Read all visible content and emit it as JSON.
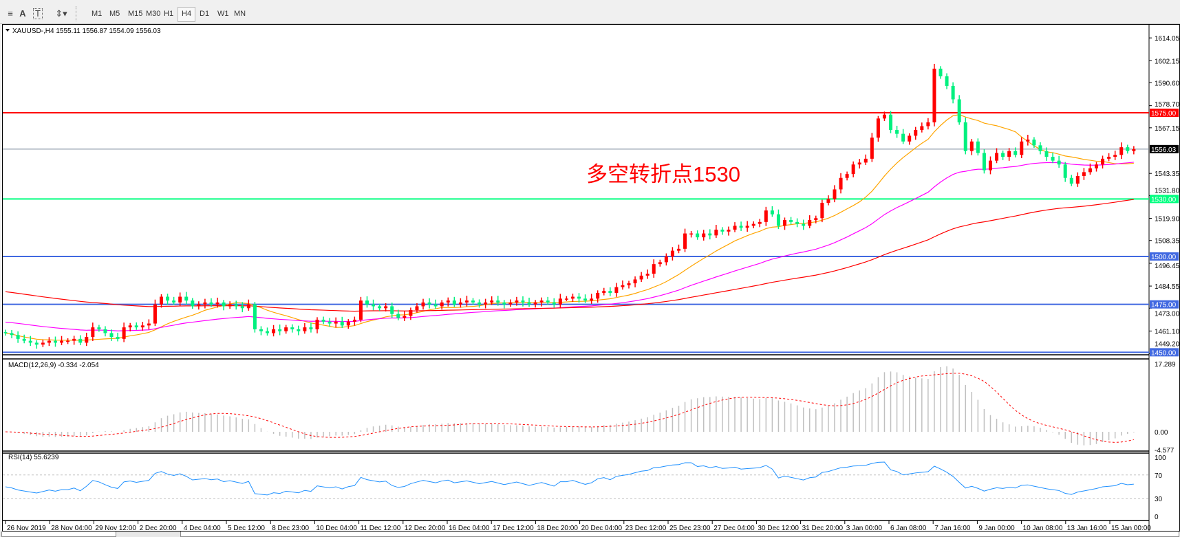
{
  "toolbar": {
    "tools": [
      {
        "name": "fibonacci-fan-icon",
        "glyph": "≡"
      },
      {
        "name": "text-icon",
        "glyph": "A"
      },
      {
        "name": "text-label-icon",
        "glyph": "T"
      },
      {
        "name": "arrows-icon",
        "glyph": "⇕▾"
      }
    ],
    "timeframes": [
      "M1",
      "M5",
      "M15",
      "M30",
      "H1",
      "H4",
      "D1",
      "W1",
      "MN"
    ],
    "active_timeframe": "H4"
  },
  "chart": {
    "header": "XAUUSD-,H4  1555.11 1556.87 1554.09 1556.03",
    "annotation": "多空转折点1530",
    "annotation_color": "#ff0000",
    "bull_color": "#ff0000",
    "bear_color": "#00f07f",
    "price_labels": [
      "1614.05",
      "1602.15",
      "1590.60",
      "1578.70",
      "1567.15",
      "1543.35",
      "1531.80",
      "1519.90",
      "1508.35",
      "1496.45",
      "1484.55",
      "1473.00",
      "1461.10",
      "1449.20"
    ],
    "current_price": "1556.03",
    "hlines": [
      {
        "value": 1575.0,
        "label": "1575.00",
        "color": "#ff0000"
      },
      {
        "value": 1556.03,
        "label": "1556.03",
        "color": "#778899"
      },
      {
        "value": 1530.0,
        "label": "1530.00",
        "color": "#00ff7f"
      },
      {
        "value": 1500.0,
        "label": "1500.00",
        "color": "#4169e1"
      },
      {
        "value": 1475.0,
        "label": "1475.00",
        "color": "#4169e1"
      },
      {
        "value": 1450.0,
        "label": "1450.00",
        "color": "#4169e1"
      }
    ],
    "ma_colors": [
      "#ffa500",
      "#ff00ff",
      "#ff0000"
    ],
    "closes": [
      1460,
      1459,
      1457,
      1456,
      1455,
      1454,
      1455,
      1456,
      1455,
      1456,
      1456,
      1457,
      1455,
      1458,
      1463,
      1462,
      1460,
      1458,
      1457,
      1463,
      1464,
      1463,
      1464,
      1465,
      1475,
      1479,
      1477,
      1476,
      1479,
      1477,
      1474,
      1475,
      1476,
      1475,
      1476,
      1474,
      1475,
      1474,
      1473,
      1475,
      1462,
      1461,
      1460,
      1462,
      1461,
      1463,
      1462,
      1461,
      1463,
      1462,
      1467,
      1466,
      1465,
      1466,
      1464,
      1466,
      1467,
      1477,
      1475,
      1474,
      1473,
      1474,
      1470,
      1468,
      1469,
      1472,
      1474,
      1476,
      1475,
      1474,
      1476,
      1477,
      1475,
      1476,
      1477,
      1476,
      1475,
      1476,
      1477,
      1476,
      1475,
      1476,
      1477,
      1476,
      1475,
      1476,
      1477,
      1476,
      1475,
      1478,
      1478,
      1479,
      1478,
      1477,
      1478,
      1481,
      1482,
      1481,
      1484,
      1485,
      1486,
      1488,
      1490,
      1491,
      1496,
      1497,
      1500,
      1503,
      1504,
      1512,
      1512,
      1510,
      1512,
      1511,
      1514,
      1513,
      1514,
      1516,
      1515,
      1516,
      1517,
      1518,
      1524,
      1522,
      1516,
      1519,
      1518,
      1517,
      1516,
      1519,
      1520,
      1528,
      1530,
      1535,
      1541,
      1543,
      1548,
      1549,
      1551,
      1562,
      1572,
      1574,
      1566,
      1564,
      1560,
      1563,
      1566,
      1568,
      1570,
      1598,
      1594,
      1589,
      1582,
      1570,
      1555,
      1560,
      1554,
      1545,
      1550,
      1554,
      1552,
      1555,
      1553,
      1560,
      1561,
      1558,
      1555,
      1552,
      1550,
      1548,
      1541,
      1538,
      1542,
      1544,
      1546,
      1548,
      1551,
      1552,
      1553,
      1557,
      1555,
      1556
    ]
  },
  "macd": {
    "label": "MACD(12,26,9) -0.334 -2.054",
    "axis_labels": [
      "17.289",
      "0.00",
      "-4.577"
    ],
    "hist_color": "#c0c0c0",
    "signal_color": "#ff0000"
  },
  "rsi": {
    "label": "RSI(14) 55.6239",
    "axis_labels": [
      "100",
      "70",
      "30",
      "0"
    ],
    "color": "#1e90ff"
  },
  "time_axis": [
    "26 Nov 2019",
    "28 Nov 04:00",
    "29 Nov 12:00",
    "2 Dec 20:00",
    "4 Dec 04:00",
    "5 Dec 12:00",
    "8 Dec 23:00",
    "10 Dec 04:00",
    "11 Dec 12:00",
    "12 Dec 20:00",
    "16 Dec 04:00",
    "17 Dec 12:00",
    "18 Dec 20:00",
    "20 Dec 04:00",
    "23 Dec 12:00",
    "25 Dec 23:00",
    "27 Dec 04:00",
    "30 Dec 12:00",
    "31 Dec 20:00",
    "3 Jan 00:00",
    "6 Jan 08:00",
    "7 Jan 16:00",
    "9 Jan 00:00",
    "10 Jan 08:00",
    "13 Jan 16:00",
    "15 Jan 00:00"
  ]
}
